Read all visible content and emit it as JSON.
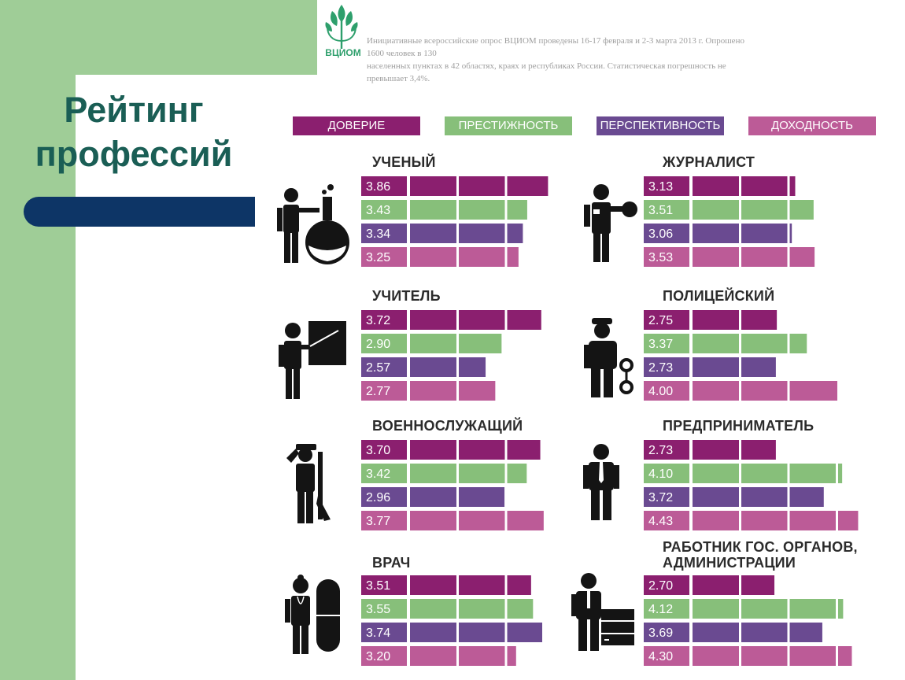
{
  "title_lines": [
    "Рейтинг",
    "профессий"
  ],
  "logo_text": "ВЦИОМ",
  "source_lines": [
    "Инициативные всероссийские опрос ВЦИОМ проведены 16-17 февраля и 2-3 марта 2013 г. Опрошено 1600 человек в 130",
    "населенных пунктах в 42 областях, краях и республиках России. Статистическая погрешность не превышает 3,4%."
  ],
  "colors": {
    "trust": "#8b1f6f",
    "prestige": "#87bf7a",
    "prospects": "#6a4a91",
    "income": "#bc5b97",
    "background_band": "#9fcd97",
    "title": "#1a5e55",
    "navy_bar": "#0d3566"
  },
  "chart_data": {
    "type": "bar",
    "orientation": "horizontal",
    "series_names": [
      "ДОВЕРИЕ",
      "ПРЕСТИЖНОСТЬ",
      "ПЕРСПЕКТИВНОСТЬ",
      "ДОХОДНОСТЬ"
    ],
    "xlim": [
      0,
      5
    ],
    "legend_position": "top",
    "grid": false,
    "groups": [
      {
        "name": "УЧЕНЫЙ",
        "icon": "scientist-flask-icon",
        "values": [
          3.86,
          3.43,
          3.34,
          3.25
        ],
        "labels": [
          "3.86",
          "3.43",
          "3.34",
          "3.25"
        ]
      },
      {
        "name": "ЖУРНАЛИСТ",
        "icon": "journalist-microphone-icon",
        "values": [
          3.13,
          3.51,
          3.06,
          3.53
        ],
        "labels": [
          "3.13",
          "3.51",
          "3.06",
          "3.53"
        ]
      },
      {
        "name": "УЧИТЕЛЬ",
        "icon": "teacher-board-icon",
        "values": [
          3.72,
          2.9,
          2.57,
          2.77
        ],
        "labels": [
          "3.72",
          "2.90",
          "2.57",
          "2.77"
        ]
      },
      {
        "name": "ПОЛИЦЕЙСКИЙ",
        "icon": "police-handcuffs-icon",
        "values": [
          2.75,
          3.37,
          2.73,
          4.0
        ],
        "labels": [
          "2.75",
          "3.37",
          "2.73",
          "4.00"
        ]
      },
      {
        "name": "ВОЕННОСЛУЖАЩИЙ",
        "icon": "soldier-rifle-icon",
        "values": [
          3.7,
          3.42,
          2.96,
          3.77
        ],
        "labels": [
          "3.70",
          "3.42",
          "2.96",
          "3.77"
        ]
      },
      {
        "name": "ПРЕДПРИНИМАТЕЛЬ",
        "icon": "businessman-tie-icon",
        "values": [
          2.73,
          4.1,
          3.72,
          4.43
        ],
        "labels": [
          "2.73",
          "4.10",
          "3.72",
          "4.43"
        ]
      },
      {
        "name": "ВРАЧ",
        "icon": "doctor-pill-icon",
        "values": [
          3.51,
          3.55,
          3.74,
          3.2
        ],
        "labels": [
          "3.51",
          "3.55",
          "3.74",
          "3.20"
        ]
      },
      {
        "name": "РАБОТНИК ГОС. ОРГАНОВ,\nАДМИНИСТРАЦИИ",
        "icon": "official-documents-icon",
        "values": [
          2.7,
          4.12,
          3.69,
          4.3
        ],
        "labels": [
          "2.70",
          "4.12",
          "3.69",
          "4.30"
        ]
      }
    ]
  }
}
